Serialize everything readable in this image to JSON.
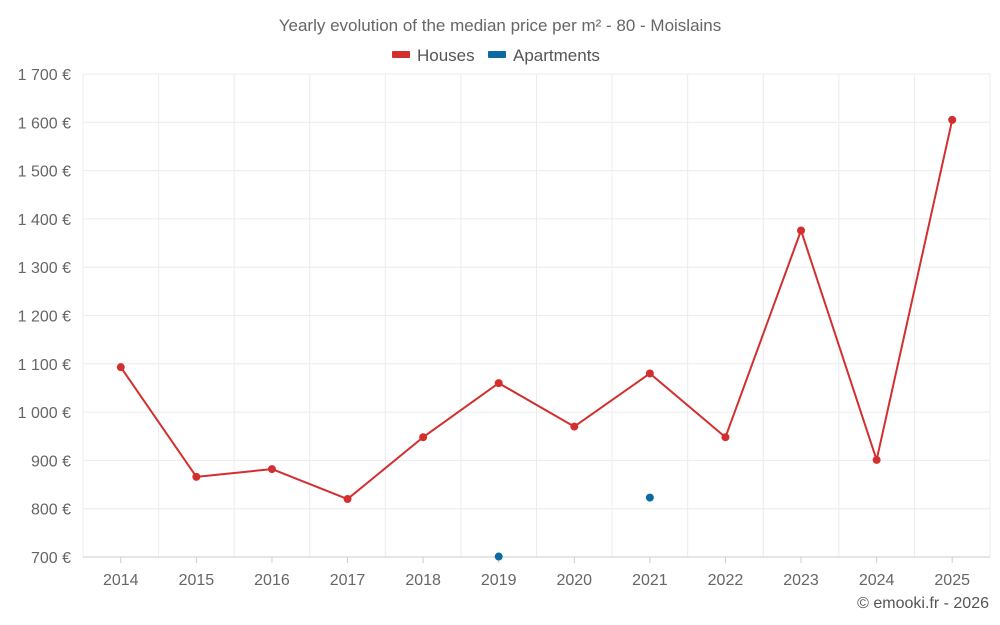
{
  "chart_data": {
    "type": "line",
    "title": "Yearly evolution of the median price per m² - 80 - Moislains",
    "categories": [
      "2014",
      "2015",
      "2016",
      "2017",
      "2018",
      "2019",
      "2020",
      "2021",
      "2022",
      "2023",
      "2024",
      "2025"
    ],
    "ylim": [
      700,
      1700
    ],
    "yticks": [
      700,
      800,
      900,
      1000,
      1100,
      1200,
      1300,
      1400,
      1500,
      1600,
      1700
    ],
    "ytick_labels": [
      "700 €",
      "800 €",
      "900 €",
      "1 000 €",
      "1 100 €",
      "1 200 €",
      "1 300 €",
      "1 400 €",
      "1 500 €",
      "1 600 €",
      "1 700 €"
    ],
    "grid": true,
    "legend_position": "top-center",
    "series": [
      {
        "name": "Houses",
        "color": "#d32f2f",
        "values": [
          1093,
          866,
          882,
          820,
          948,
          1060,
          970,
          1080,
          948,
          1376,
          901,
          1605
        ]
      },
      {
        "name": "Apartments",
        "color": "#0b6aa2",
        "values": [
          null,
          null,
          null,
          null,
          null,
          701,
          null,
          823,
          null,
          null,
          null,
          null
        ]
      }
    ]
  },
  "footer": {
    "credit": "© emooki.fr - 2026"
  }
}
